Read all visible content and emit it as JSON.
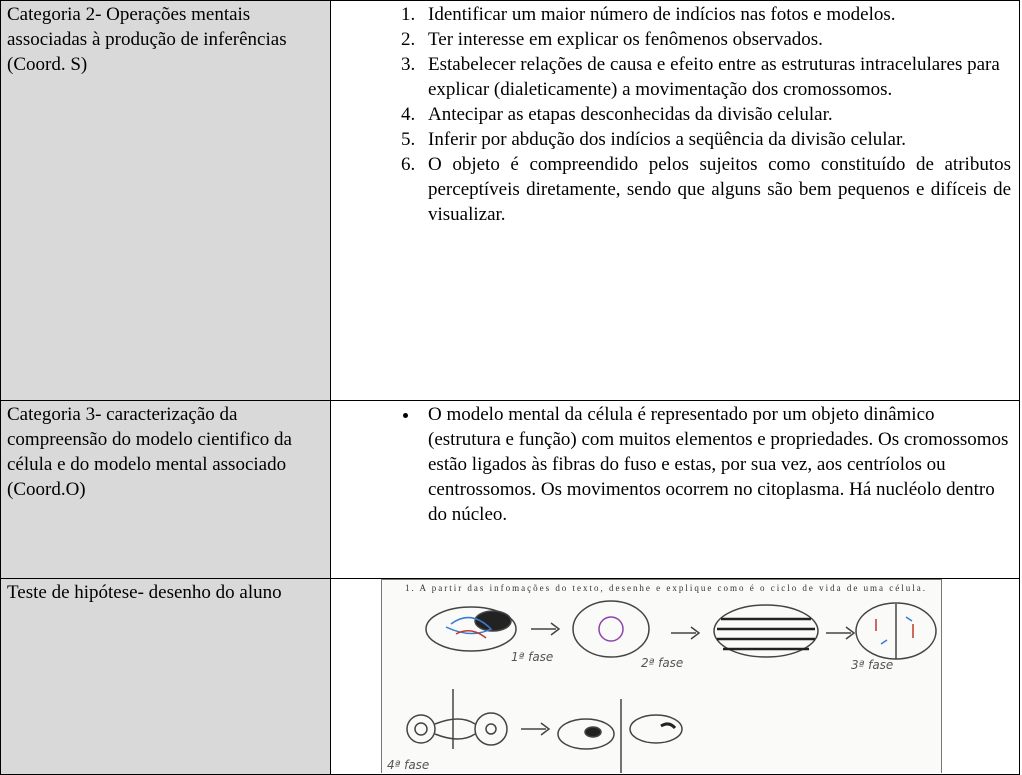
{
  "table": {
    "rows": [
      {
        "label": "Categoria 2- Operações mentais associadas à produção de inferências (Coord. S)",
        "items": [
          "Identificar um maior número de indícios nas fotos e modelos.",
          "Ter interesse em explicar os fenômenos observados.",
          "Estabelecer relações de causa e efeito entre as estruturas intracelulares para explicar (dialeticamente) a movimentação dos cromossomos.",
          "Antecipar as etapas desconhecidas da divisão celular.",
          "Inferir por abdução dos indícios a seqüência da divisão celular.",
          "O objeto é compreendido pelos sujeitos como constituído de atributos perceptíveis diretamente, sendo que alguns são bem pequenos e difíceis de visualizar."
        ]
      },
      {
        "label": "Categoria 3- caracterização da compreensão do modelo cientifico da célula e do modelo mental associado (Coord.O)",
        "items": [
          "O modelo mental da célula é representado por um objeto dinâmico (estrutura e função) com muitos elementos e propriedades. Os cromossomos estão ligados às fibras do fuso e estas, por sua vez, aos centríolos ou centrossomos. Os movimentos ocorrem no citoplasma. Há nucléolo dentro do núcleo."
        ]
      },
      {
        "label": "Teste de hipótese- desenho do aluno",
        "drawing": {
          "prompt": "1. A partir das infomações do texto, desenhe e explique como é o ciclo de vida de uma célula.",
          "labels": [
            "1ª fase",
            "2ª fase",
            "3ª fase",
            "4ª fase"
          ]
        }
      }
    ]
  }
}
